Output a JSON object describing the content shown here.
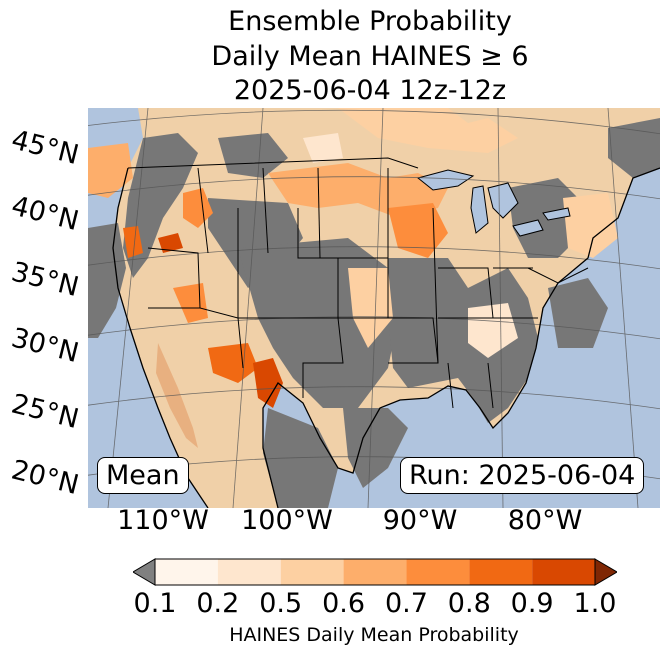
{
  "title": {
    "line1": "Ensemble Probability",
    "line2": "Daily Mean HAINES ≥ 6",
    "line3": "2025-06-04 12z-12z"
  },
  "latitude_labels": [
    "45°N",
    "40°N",
    "35°N",
    "30°N",
    "25°N",
    "20°N"
  ],
  "longitude_labels": [
    "110°W",
    "100°W",
    "90°W",
    "80°W"
  ],
  "mean_box": "Mean",
  "run_box": "Run: 2025-06-04",
  "colorbar": {
    "ticks": [
      "0.1",
      "0.2",
      "0.5",
      "0.6",
      "0.7",
      "0.8",
      "0.9",
      "1.0"
    ],
    "label": "HAINES Daily Mean Probability",
    "colors": [
      "#fff5eb",
      "#fee6ce",
      "#fdd0a2",
      "#fdae6b",
      "#fd8d3c",
      "#f16913",
      "#d94801",
      "#8c2d04"
    ],
    "under_color": "#808080",
    "over_color": "#7f2704"
  },
  "map_colors": {
    "ocean": "#b0c4de",
    "land_below": "#777777",
    "boundary": "#000000",
    "grid": "#555555"
  }
}
